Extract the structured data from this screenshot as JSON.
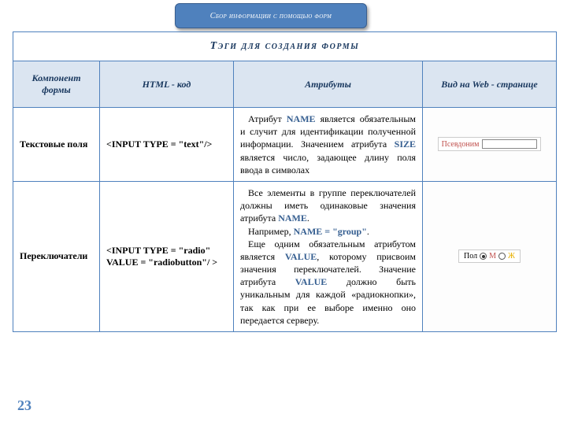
{
  "banner": "Сбор информации с помощью форм",
  "table": {
    "title": "Тэги  для создания формы",
    "headers": {
      "c1": "Компонент формы",
      "c2": "HTML - код",
      "c3": "Атрибуты",
      "c4": "Вид на Web - странице"
    },
    "rows": [
      {
        "component": "Текстовые поля",
        "code": "<INPUT TYPE = \"text\"/>",
        "attr_html": "<p>Атрибут <span class=\"kw\">NAME</span> является обязательным и случит для идентификации полученной информации. Значением атрибута <span class=\"kw\">SIZE</span> является число, задающее длину поля ввода в символах</p>",
        "preview": {
          "type": "text",
          "label": "Псевдоним"
        }
      },
      {
        "component": "Переключатели",
        "code": "<INPUT TYPE = \"radio\" VALUE = \"radiobutton\"/ >",
        "attr_html": "<p>Все элементы в группе переключателей должны иметь одинаковые значения атрибута <span class=\"kw\">NAME</span>.</p><p>Например, <span class=\"kw\">NAME = \"group\"</span>.</p><p>Еще одним обязательным атрибутом является <span class=\"kw\">VALUE</span>, которому присвоим значения переключателей. Значение атрибута <span class=\"kw\">VALUE</span> должно быть уникальным для каждой «радиокнопки», так как при ее выборе именно оно передается серверу.</p>",
        "preview": {
          "type": "radio",
          "label": "Пол",
          "opt1": "М",
          "opt2": "Ж"
        }
      }
    ]
  },
  "page_number": "23",
  "colors": {
    "accent": "#4f81bd",
    "header_bg": "#dbe5f1",
    "dark_text": "#17365d",
    "keyword": "#365f91",
    "red": "#c0504d",
    "yellow": "#e8b000"
  }
}
